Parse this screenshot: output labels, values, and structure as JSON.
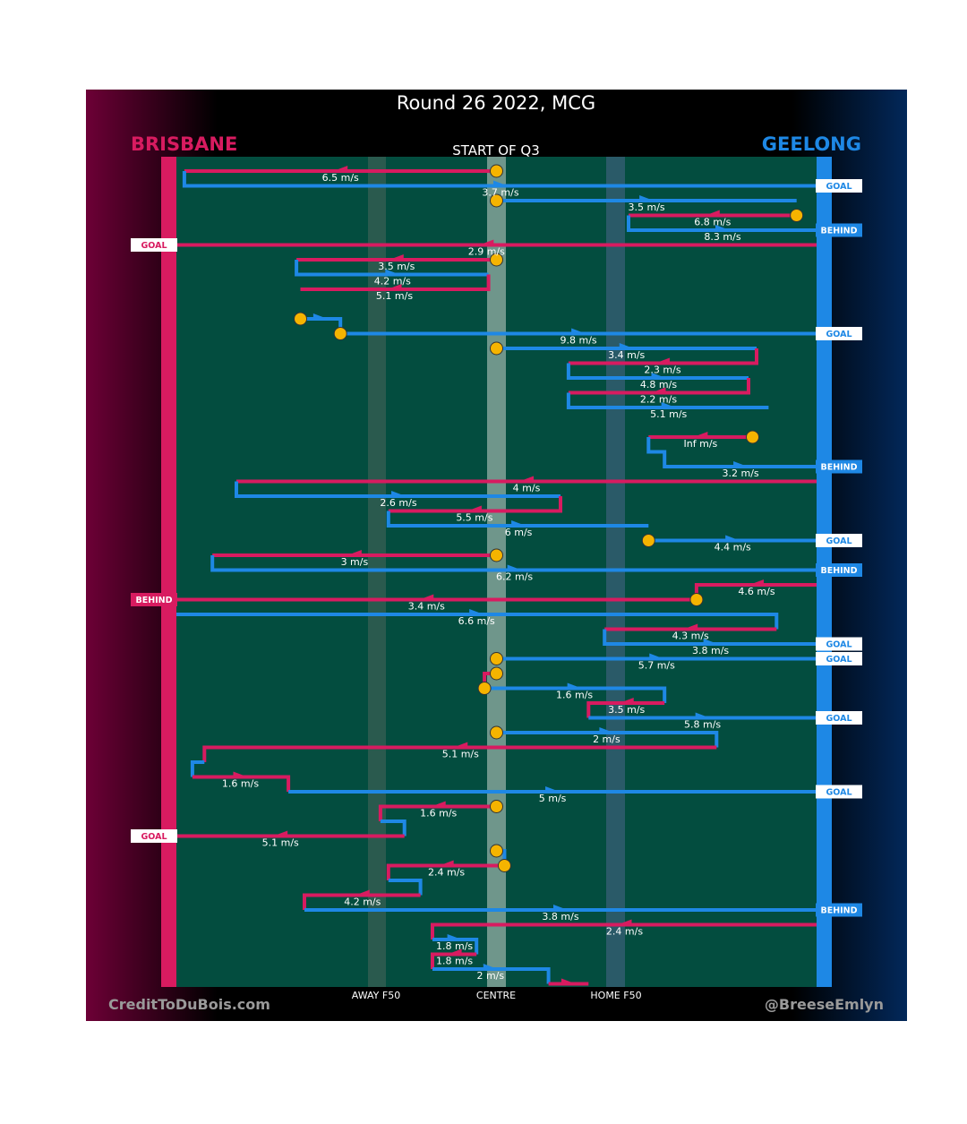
{
  "title": "Round 26 2022, MCG",
  "teams": {
    "left": "BRISBANE",
    "right": "GEELONG"
  },
  "subtitle": "START OF Q3",
  "axis_labels": {
    "away": "AWAY F50",
    "centre": "CENTRE",
    "home": "HOME F50"
  },
  "credits": {
    "left": "CreditToDuBois.com",
    "right": "@BreeseEmlyn"
  },
  "colors": {
    "brisbane": "#d81b60",
    "geelong": "#1e88e5",
    "field": "#034d3f",
    "start_marker": "#f5b400"
  },
  "chart_data": {
    "type": "line",
    "description_units": "x = field position in metres from Brisbane goal (0) to Geelong goal (160); each row is one possession chain segment",
    "xlim": [
      0,
      160
    ],
    "markers": {
      "away_f50": 50,
      "centre": 80,
      "home_f50": 110
    },
    "segments": [
      {
        "team": "BRI",
        "path": [
          [
            80,
            0
          ],
          [
            2,
            0
          ]
        ],
        "speed": "6.5 m/s",
        "start": true
      },
      {
        "team": "GEE",
        "path": [
          [
            2,
            0
          ],
          [
            2,
            1
          ],
          [
            160,
            1
          ]
        ],
        "speed": "3.7 m/s",
        "end": "GOAL"
      },
      {
        "team": "GEE",
        "path": [
          [
            80,
            2
          ],
          [
            155,
            2
          ]
        ],
        "speed": "3.5 m/s",
        "start": true
      },
      {
        "team": "BRI",
        "path": [
          [
            155,
            3
          ],
          [
            113,
            3
          ]
        ],
        "speed": "6.8 m/s",
        "start": true
      },
      {
        "team": "GEE",
        "path": [
          [
            113,
            3
          ],
          [
            113,
            4
          ],
          [
            160,
            4
          ]
        ],
        "speed": "8.3 m/s",
        "end": "BEHIND"
      },
      {
        "team": "BRI",
        "path": [
          [
            160,
            5
          ],
          [
            -5,
            5
          ]
        ],
        "speed": "2.9 m/s",
        "end": "GOAL"
      },
      {
        "team": "BRI",
        "path": [
          [
            80,
            6
          ],
          [
            30,
            6
          ]
        ],
        "speed": "3.5 m/s",
        "start": true
      },
      {
        "team": "GEE",
        "path": [
          [
            30,
            6
          ],
          [
            30,
            7
          ],
          [
            78,
            7
          ]
        ],
        "speed": "4.2 m/s"
      },
      {
        "team": "BRI",
        "path": [
          [
            78,
            7
          ],
          [
            78,
            8
          ],
          [
            31,
            8
          ]
        ],
        "speed": "5.1 m/s"
      },
      {
        "team": "GEE",
        "path": [
          [
            31,
            10
          ],
          [
            41,
            10
          ],
          [
            41,
            11
          ]
        ],
        "speed": "",
        "start": true
      },
      {
        "team": "GEE",
        "path": [
          [
            41,
            11
          ],
          [
            160,
            11
          ]
        ],
        "speed": "9.8 m/s",
        "end": "GOAL",
        "start": true
      },
      {
        "team": "GEE",
        "path": [
          [
            80,
            12
          ],
          [
            145,
            12
          ]
        ],
        "speed": "3.4 m/s",
        "start": true
      },
      {
        "team": "BRI",
        "path": [
          [
            145,
            12
          ],
          [
            145,
            13
          ],
          [
            98,
            13
          ]
        ],
        "speed": "2.3 m/s"
      },
      {
        "team": "GEE",
        "path": [
          [
            98,
            13
          ],
          [
            98,
            14
          ],
          [
            143,
            14
          ]
        ],
        "speed": "4.8 m/s"
      },
      {
        "team": "BRI",
        "path": [
          [
            143,
            14
          ],
          [
            143,
            15
          ],
          [
            98,
            15
          ]
        ],
        "speed": "2.2 m/s"
      },
      {
        "team": "GEE",
        "path": [
          [
            98,
            15
          ],
          [
            98,
            16
          ],
          [
            148,
            16
          ]
        ],
        "speed": "5.1 m/s"
      },
      {
        "team": "BRI",
        "path": [
          [
            144,
            18
          ],
          [
            118,
            18
          ]
        ],
        "speed": "Inf m/s",
        "start": true
      },
      {
        "team": "GEE",
        "path": [
          [
            118,
            18
          ],
          [
            118,
            19
          ],
          [
            122,
            19
          ],
          [
            122,
            20
          ],
          [
            160,
            20
          ]
        ],
        "speed": "3.2 m/s",
        "end": "BEHIND"
      },
      {
        "team": "BRI",
        "path": [
          [
            160,
            21
          ],
          [
            15,
            21
          ]
        ],
        "speed": "4 m/s"
      },
      {
        "team": "GEE",
        "path": [
          [
            15,
            21
          ],
          [
            15,
            22
          ],
          [
            96,
            22
          ]
        ],
        "speed": "2.6 m/s"
      },
      {
        "team": "BRI",
        "path": [
          [
            96,
            22
          ],
          [
            96,
            23
          ],
          [
            53,
            23
          ]
        ],
        "speed": "5.5 m/s"
      },
      {
        "team": "GEE",
        "path": [
          [
            53,
            23
          ],
          [
            53,
            24
          ],
          [
            118,
            24
          ]
        ],
        "speed": "6 m/s"
      },
      {
        "team": "GEE",
        "path": [
          [
            118,
            25
          ],
          [
            160,
            25
          ]
        ],
        "speed": "4.4 m/s",
        "end": "GOAL",
        "start": true
      },
      {
        "team": "BRI",
        "path": [
          [
            80,
            26
          ],
          [
            9,
            26
          ]
        ],
        "speed": "3 m/s",
        "start": true
      },
      {
        "team": "GEE",
        "path": [
          [
            9,
            26
          ],
          [
            9,
            27
          ],
          [
            160,
            27
          ]
        ],
        "speed": "6.2 m/s",
        "end": "BEHIND"
      },
      {
        "team": "BRI",
        "path": [
          [
            160,
            28
          ],
          [
            130,
            28
          ],
          [
            130,
            29
          ]
        ],
        "speed": "4.6 m/s"
      },
      {
        "team": "BRI",
        "path": [
          [
            130,
            29
          ],
          [
            -5,
            29
          ]
        ],
        "speed": "3.4 m/s",
        "end": "BEHIND",
        "start": true
      },
      {
        "team": "GEE",
        "path": [
          [
            0,
            30
          ],
          [
            150,
            30
          ],
          [
            150,
            31
          ]
        ],
        "speed": "6.6 m/s"
      },
      {
        "team": "BRI",
        "path": [
          [
            150,
            31
          ],
          [
            107,
            31
          ]
        ],
        "speed": "4.3 m/s"
      },
      {
        "team": "GEE",
        "path": [
          [
            107,
            31
          ],
          [
            107,
            32
          ],
          [
            160,
            32
          ]
        ],
        "speed": "3.8 m/s",
        "end": "GOAL"
      },
      {
        "team": "GEE",
        "path": [
          [
            80,
            33
          ],
          [
            160,
            33
          ]
        ],
        "speed": "5.7 m/s",
        "end": "GOAL",
        "start": true
      },
      {
        "team": "BRI",
        "path": [
          [
            80,
            34
          ],
          [
            77,
            34
          ],
          [
            77,
            35
          ]
        ],
        "speed": "",
        "start": true
      },
      {
        "team": "GEE",
        "path": [
          [
            77,
            35
          ],
          [
            122,
            35
          ],
          [
            122,
            36
          ]
        ],
        "speed": "1.6 m/s",
        "start": true
      },
      {
        "team": "BRI",
        "path": [
          [
            122,
            36
          ],
          [
            103,
            36
          ],
          [
            103,
            37
          ]
        ],
        "speed": "3.5 m/s"
      },
      {
        "team": "GEE",
        "path": [
          [
            103,
            37
          ],
          [
            160,
            37
          ]
        ],
        "speed": "5.8 m/s",
        "end": "GOAL"
      },
      {
        "team": "GEE",
        "path": [
          [
            80,
            38
          ],
          [
            135,
            38
          ],
          [
            135,
            39
          ]
        ],
        "speed": "2 m/s",
        "start": true
      },
      {
        "team": "BRI",
        "path": [
          [
            135,
            39
          ],
          [
            7,
            39
          ],
          [
            7,
            40
          ]
        ],
        "speed": "5.1 m/s"
      },
      {
        "team": "GEE",
        "path": [
          [
            7,
            40
          ],
          [
            4,
            40
          ],
          [
            4,
            41
          ]
        ],
        "speed": ""
      },
      {
        "team": "BRI",
        "path": [
          [
            4,
            41
          ],
          [
            28,
            41
          ],
          [
            28,
            42
          ]
        ],
        "speed": "1.6 m/s"
      },
      {
        "team": "GEE",
        "path": [
          [
            28,
            42
          ],
          [
            160,
            42
          ]
        ],
        "speed": "5 m/s",
        "end": "GOAL"
      },
      {
        "team": "BRI",
        "path": [
          [
            80,
            43
          ],
          [
            51,
            43
          ],
          [
            51,
            44
          ]
        ],
        "speed": "1.6 m/s",
        "start": true
      },
      {
        "team": "GEE",
        "path": [
          [
            51,
            44
          ],
          [
            57,
            44
          ],
          [
            57,
            45
          ]
        ],
        "speed": ""
      },
      {
        "team": "BRI",
        "path": [
          [
            57,
            45
          ],
          [
            -5,
            45
          ]
        ],
        "speed": "5.1 m/s",
        "end": "GOAL"
      },
      {
        "team": "GEE",
        "path": [
          [
            80,
            46
          ],
          [
            82,
            46
          ],
          [
            82,
            47
          ]
        ],
        "speed": "",
        "start": true
      },
      {
        "team": "BRI",
        "path": [
          [
            82,
            47
          ],
          [
            53,
            47
          ],
          [
            53,
            48
          ]
        ],
        "speed": "2.4 m/s",
        "start": true
      },
      {
        "team": "GEE",
        "path": [
          [
            53,
            48
          ],
          [
            61,
            48
          ],
          [
            61,
            49
          ]
        ],
        "speed": ""
      },
      {
        "team": "BRI",
        "path": [
          [
            61,
            49
          ],
          [
            32,
            49
          ],
          [
            32,
            50
          ]
        ],
        "speed": "4.2 m/s"
      },
      {
        "team": "GEE",
        "path": [
          [
            32,
            50
          ],
          [
            160,
            50
          ]
        ],
        "speed": "3.8 m/s",
        "end": "BEHIND"
      },
      {
        "team": "BRI",
        "path": [
          [
            160,
            51
          ],
          [
            64,
            51
          ],
          [
            64,
            52
          ]
        ],
        "speed": "2.4 m/s"
      },
      {
        "team": "GEE",
        "path": [
          [
            64,
            52
          ],
          [
            75,
            52
          ],
          [
            75,
            53
          ]
        ],
        "speed": "1.8 m/s"
      },
      {
        "team": "BRI",
        "path": [
          [
            75,
            53
          ],
          [
            64,
            53
          ],
          [
            64,
            54
          ]
        ],
        "speed": "1.8 m/s"
      },
      {
        "team": "GEE",
        "path": [
          [
            64,
            54
          ],
          [
            93,
            54
          ],
          [
            93,
            55
          ]
        ],
        "speed": "2 m/s"
      },
      {
        "team": "BRI",
        "path": [
          [
            93,
            55
          ],
          [
            103,
            55
          ]
        ],
        "speed": ""
      }
    ]
  }
}
